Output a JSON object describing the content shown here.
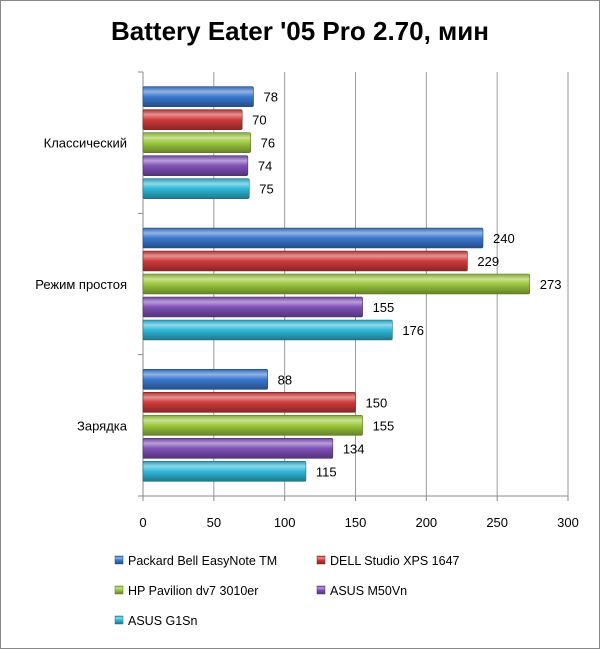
{
  "chart_data": {
    "type": "bar",
    "orientation": "horizontal",
    "title": "Battery Eater '05 Pro 2.70, мин",
    "categories": [
      "Классический",
      "Режим простоя",
      "Зарядка"
    ],
    "series": [
      {
        "name": "Packard Bell EasyNote TM",
        "color": "#3a78d0",
        "values": [
          78,
          240,
          88
        ]
      },
      {
        "name": "DELL Studio XPS 1647",
        "color": "#d03a3a",
        "values": [
          70,
          229,
          150
        ]
      },
      {
        "name": "HP Pavilion dv7 3010er",
        "color": "#9cc83c",
        "values": [
          76,
          273,
          155
        ]
      },
      {
        "name": "ASUS M50Vn",
        "color": "#8050b8",
        "values": [
          74,
          155,
          134
        ]
      },
      {
        "name": "ASUS G1Sn",
        "color": "#30b8d8",
        "values": [
          75,
          176,
          115
        ]
      }
    ],
    "xlim": [
      0,
      300
    ],
    "xticks": [
      0,
      50,
      100,
      150,
      200,
      250,
      300
    ],
    "grid": true,
    "legend_position": "bottom",
    "xlabel": "",
    "ylabel": ""
  }
}
